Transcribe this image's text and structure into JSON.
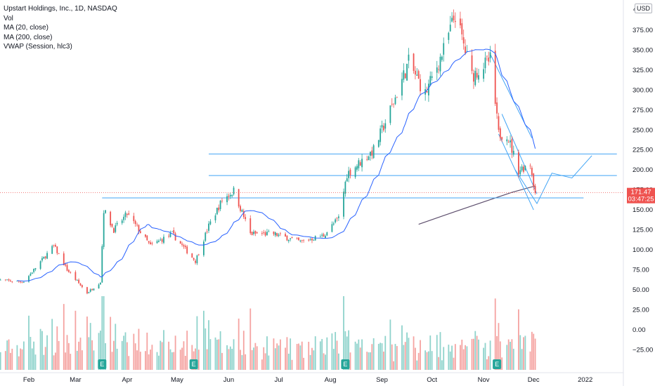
{
  "legend": {
    "title": "Upstart Holdings, Inc., 1D, NASDAQ",
    "vol": "Vol",
    "ma20": "MA (20, close)",
    "ma200": "MA (200, close)",
    "vwap": "VWAP (Session, hlc3)"
  },
  "price_axis": {
    "currency": "USD",
    "last_price": "171.47",
    "countdown": "03:47:25",
    "top_partial": "4"
  },
  "colors": {
    "up": "#26a69a",
    "down": "#ef5350",
    "up_vol": "#8fd3cc",
    "down_vol": "#f5a3a1",
    "ma20": "#2962ff",
    "ma200": "#5d4e6d",
    "drawing": "#42a5f5",
    "price_label": "#ef5350"
  },
  "chart_data": {
    "type": "candlestick",
    "title": "Upstart Holdings, Inc., 1D, NASDAQ",
    "y_ticks": [
      "375.00",
      "350.00",
      "325.00",
      "300.00",
      "275.00",
      "250.00",
      "225.00",
      "200.00",
      "175.00",
      "150.00",
      "125.00",
      "100.00",
      "75.00",
      "50.00",
      "25.00",
      "0.00",
      "−25.00"
    ],
    "y_tick_values": [
      375,
      350,
      325,
      300,
      275,
      250,
      225,
      200,
      175,
      150,
      125,
      100,
      75,
      50,
      25,
      0,
      -25
    ],
    "x_ticks": [
      "Feb",
      "Mar",
      "Apr",
      "May",
      "Jun",
      "Jul",
      "Aug",
      "Sep",
      "Oct",
      "Nov",
      "Dec",
      "2022"
    ],
    "ylim": [
      -50,
      400
    ],
    "last_price": 171.47,
    "earnings_markers": [
      "E",
      "E",
      "E",
      "E"
    ],
    "anchors": [
      {
        "date": "2021-01-13",
        "close": 62
      },
      {
        "date": "2021-01-29",
        "close": 60
      },
      {
        "date": "2021-02-10",
        "close": 90
      },
      {
        "date": "2021-02-16",
        "close": 105
      },
      {
        "date": "2021-02-24",
        "close": 75
      },
      {
        "date": "2021-03-08",
        "close": 46
      },
      {
        "date": "2021-03-16",
        "close": 60
      },
      {
        "date": "2021-03-18",
        "close": 150
      },
      {
        "date": "2021-03-24",
        "close": 125
      },
      {
        "date": "2021-04-01",
        "close": 145
      },
      {
        "date": "2021-04-15",
        "close": 105
      },
      {
        "date": "2021-04-28",
        "close": 120
      },
      {
        "date": "2021-05-12",
        "close": 86
      },
      {
        "date": "2021-05-20",
        "close": 130
      },
      {
        "date": "2021-05-28",
        "close": 162
      },
      {
        "date": "2021-06-04",
        "close": 174
      },
      {
        "date": "2021-06-14",
        "close": 120
      },
      {
        "date": "2021-06-28",
        "close": 120
      },
      {
        "date": "2021-07-14",
        "close": 110
      },
      {
        "date": "2021-07-28",
        "close": 118
      },
      {
        "date": "2021-08-06",
        "close": 140
      },
      {
        "date": "2021-08-11",
        "close": 195
      },
      {
        "date": "2021-08-27",
        "close": 225
      },
      {
        "date": "2021-09-08",
        "close": 285
      },
      {
        "date": "2021-09-17",
        "close": 335
      },
      {
        "date": "2021-09-27",
        "close": 295
      },
      {
        "date": "2021-10-08",
        "close": 350
      },
      {
        "date": "2021-10-15",
        "close": 395
      },
      {
        "date": "2021-10-25",
        "close": 318
      },
      {
        "date": "2021-11-05",
        "close": 338
      },
      {
        "date": "2021-11-10",
        "close": 245
      },
      {
        "date": "2021-11-15",
        "close": 245
      },
      {
        "date": "2021-11-22",
        "close": 200
      },
      {
        "date": "2021-11-29",
        "close": 208
      },
      {
        "date": "2021-12-02",
        "close": 171.47
      }
    ]
  }
}
